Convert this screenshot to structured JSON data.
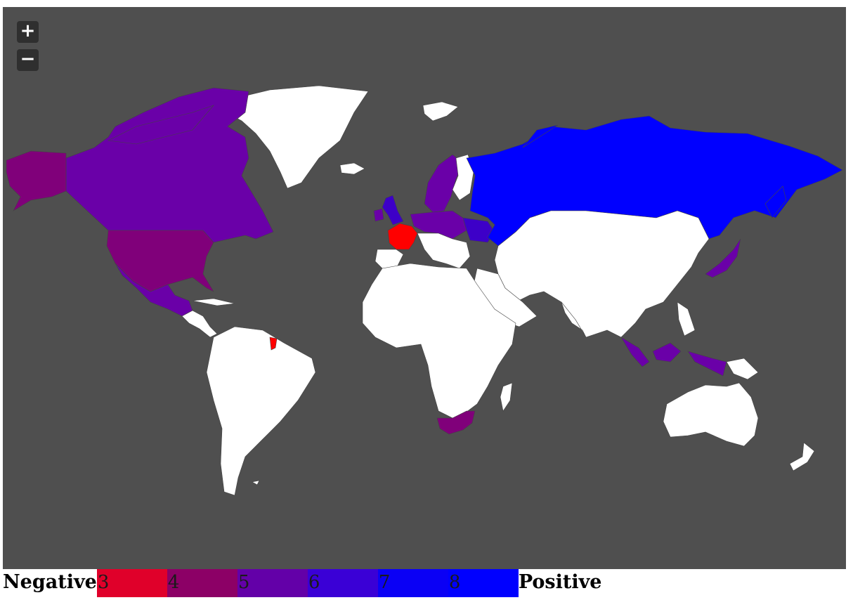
{
  "map": {
    "background": "#4f4f4f",
    "land_default_color": "#ffffff",
    "border_color": "#444444",
    "zoom_in_label": "+",
    "zoom_out_label": "−",
    "highlighted_regions": [
      {
        "name": "canada",
        "value": 5,
        "color": "#6a00a8"
      },
      {
        "name": "alaska",
        "value": 4,
        "color": "#80007a"
      },
      {
        "name": "united-states",
        "value": 4,
        "color": "#80007a"
      },
      {
        "name": "mexico",
        "value": 5,
        "color": "#6a00a8"
      },
      {
        "name": "france",
        "value": 3,
        "color": "#ff0000"
      },
      {
        "name": "french-guiana",
        "value": 3,
        "color": "#ff0000"
      },
      {
        "name": "united-kingdom",
        "value": 6,
        "color": "#3d00c8"
      },
      {
        "name": "scandinavia",
        "value": 5,
        "color": "#6a00a8"
      },
      {
        "name": "central-europe",
        "value": 5,
        "color": "#6a00a8"
      },
      {
        "name": "ukraine",
        "value": 6,
        "color": "#3d00c8"
      },
      {
        "name": "russia",
        "value": 8,
        "color": "#0000ff"
      },
      {
        "name": "japan",
        "value": 5,
        "color": "#6a00a8"
      },
      {
        "name": "indonesia",
        "value": 5,
        "color": "#6a00a8"
      },
      {
        "name": "south-africa",
        "value": 4,
        "color": "#80007a"
      }
    ]
  },
  "legend": {
    "left_label": "Negative",
    "right_label": "Positive",
    "items": [
      {
        "label": "3",
        "color": "#e0002a"
      },
      {
        "label": "4",
        "color": "#8c0066"
      },
      {
        "label": "5",
        "color": "#6300a8"
      },
      {
        "label": "6",
        "color": "#3a00d6"
      },
      {
        "label": "7",
        "color": "#0a00f5"
      },
      {
        "label": "8",
        "color": "#0000ff"
      }
    ]
  }
}
